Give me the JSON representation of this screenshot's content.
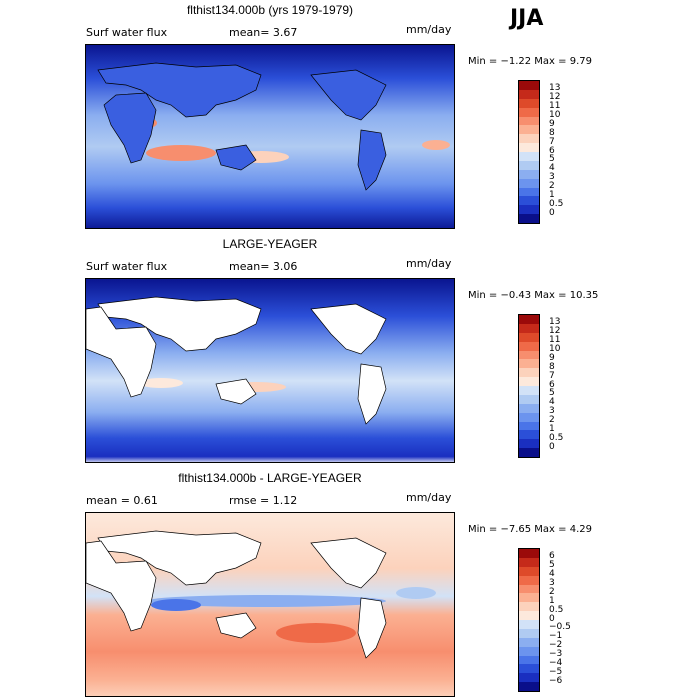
{
  "season": "JJA",
  "panels": [
    {
      "title": "flthist134.000b (yrs 1979-1979)",
      "left_label": "Surf water flux",
      "mean_text": "mean=   3.67",
      "units": "mm/day",
      "minmax": "Min =  −1.22 Max =   9.79",
      "scale": {
        "labels": [
          "13",
          "12",
          "11",
          "10",
          "9",
          "8",
          "7",
          "6",
          "5",
          "4",
          "3",
          "2",
          "1",
          "0.5",
          "0"
        ],
        "colors": [
          "#9b0a0a",
          "#c52a1a",
          "#de4a2a",
          "#ef6a48",
          "#f78e6e",
          "#fbb092",
          "#fcd2bc",
          "#fde9dc",
          "#d2e2f7",
          "#b0cbf2",
          "#8baef0",
          "#6c94ee",
          "#4a74e8",
          "#2b4fd8",
          "#1a2fc0",
          "#0a0f8a"
        ]
      }
    },
    {
      "title": "LARGE-YEAGER",
      "left_label": "Surf water flux",
      "mean_text": "mean=   3.06",
      "units": "mm/day",
      "minmax": "Min =  −0.43 Max =  10.35",
      "scale": {
        "labels": [
          "13",
          "12",
          "11",
          "10",
          "9",
          "8",
          "7",
          "6",
          "5",
          "4",
          "3",
          "2",
          "1",
          "0.5",
          "0"
        ],
        "colors": [
          "#9b0a0a",
          "#c52a1a",
          "#de4a2a",
          "#ef6a48",
          "#f78e6e",
          "#fbb092",
          "#fcd2bc",
          "#fde9dc",
          "#d2e2f7",
          "#b0cbf2",
          "#8baef0",
          "#6c94ee",
          "#4a74e8",
          "#2b4fd8",
          "#1a2fc0",
          "#0a0f8a"
        ]
      }
    },
    {
      "title": "flthist134.000b - LARGE-YEAGER",
      "left_label": "mean =    0.61",
      "mean_text": "rmse =    1.12",
      "units": "mm/day",
      "minmax": "Min =  −7.65 Max =   4.29",
      "scale": {
        "labels": [
          "6",
          "5",
          "4",
          "3",
          "2",
          "1",
          "0.5",
          "0",
          "−0.5",
          "−1",
          "−2",
          "−3",
          "−4",
          "−5",
          "−6"
        ],
        "colors": [
          "#9b0a0a",
          "#c52a1a",
          "#de4a2a",
          "#ef6a48",
          "#f78e6e",
          "#fbb092",
          "#fcd2bc",
          "#fde9dc",
          "#d2e2f7",
          "#b0cbf2",
          "#8baef0",
          "#6c94ee",
          "#4a74e8",
          "#2b4fd8",
          "#1a2fc0",
          "#0a0f8a"
        ]
      }
    }
  ]
}
